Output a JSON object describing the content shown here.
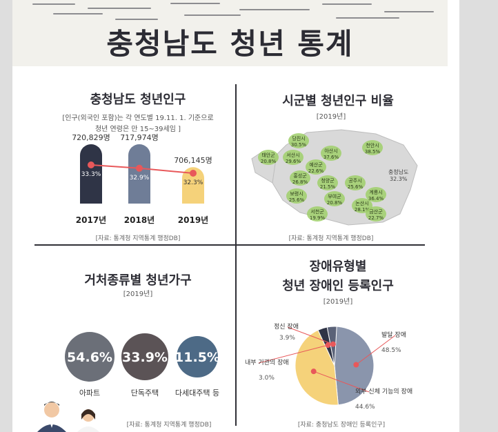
{
  "banner": {
    "title": "충청남도 청년 통계"
  },
  "sections": {
    "population": {
      "title": "충청남도 청년인구",
      "note_line1": "[인구(외국인 포함)는 각 연도별 19.11. 1. 기준으로",
      "note_line2": "청년 연령은 만 15~39세임 ]",
      "source": "[자료: 통계청 지역통계 행정DB]"
    },
    "region_ratio": {
      "title": "시군별 청년인구 비율",
      "year": "[2019년]",
      "source": "[자료: 통계청 지역통계 행정DB]",
      "total_label": "충청남도",
      "total_value": "32.3%",
      "regions": [
        {
          "name": "당진시",
          "value": "30.5%"
        },
        {
          "name": "서산시",
          "value": "29.6%"
        },
        {
          "name": "태안군",
          "value": "20.8%"
        },
        {
          "name": "아산시",
          "value": "37.6%"
        },
        {
          "name": "천안시",
          "value": "38.5%"
        },
        {
          "name": "예산군",
          "value": "22.6%"
        },
        {
          "name": "홍성군",
          "value": "26.8%"
        },
        {
          "name": "청양군",
          "value": "21.5%"
        },
        {
          "name": "공주시",
          "value": "25.6%"
        },
        {
          "name": "보령시",
          "value": "25.6%"
        },
        {
          "name": "부여군",
          "value": "20.8%"
        },
        {
          "name": "계룡시",
          "value": "36.4%"
        },
        {
          "name": "논산시",
          "value": "28.1%"
        },
        {
          "name": "서천군",
          "value": "19.9%"
        },
        {
          "name": "금산군",
          "value": "22.7%"
        }
      ]
    },
    "housing": {
      "title": "거처종류별 청년가구",
      "year": "[2019년]",
      "source": "[자료: 통계청 지역통계 행정DB]"
    },
    "disability": {
      "title_line1": "장애유형별",
      "title_line2": "청년 장애인 등록인구",
      "year": "[2019년]",
      "source": "[자료: 충청남도 장애인 등록인구]"
    }
  },
  "colors": {
    "dark": "#2f3446",
    "slate": "#6f7d97",
    "yellow": "#f5d27a",
    "red": "#e8585a",
    "pie_gray": "#8a95ac",
    "pie_light": "#d8dbe3"
  },
  "chart_data": [
    {
      "type": "bar",
      "title": "충청남도 청년인구",
      "categories": [
        "2017년",
        "2018년",
        "2019년"
      ],
      "values": [
        720829,
        717974,
        706145
      ],
      "value_labels": [
        "720,829명",
        "717,974명",
        "706,145명"
      ],
      "line_series": {
        "values": [
          33.3,
          32.9,
          32.3
        ],
        "labels": [
          "33.3%",
          "32.9%",
          "32.3%"
        ]
      },
      "ylim": [
        0,
        760000
      ]
    },
    {
      "type": "pie",
      "title": "거처종류별 청년가구",
      "slices": [
        {
          "label": "아파트",
          "value": 54.6,
          "value_label": "54.6%"
        },
        {
          "label": "단독주택",
          "value": 33.9,
          "value_label": "33.9%"
        },
        {
          "label": "다세대주택 등",
          "value": 11.5,
          "value_label": "11.5%"
        }
      ]
    },
    {
      "type": "pie",
      "title": "장애유형별 청년 장애인 등록인구",
      "slices": [
        {
          "label": "발달 장애",
          "value": 48.5,
          "value_label": "48.5%"
        },
        {
          "label": "외부 신체 기능의 장애",
          "value": 44.6,
          "value_label": "44.6%"
        },
        {
          "label": "내부 기관의 장애",
          "value": 3.0,
          "value_label": "3.0%"
        },
        {
          "label": "정신 장애",
          "value": 3.9,
          "value_label": "3.9%"
        }
      ]
    }
  ]
}
